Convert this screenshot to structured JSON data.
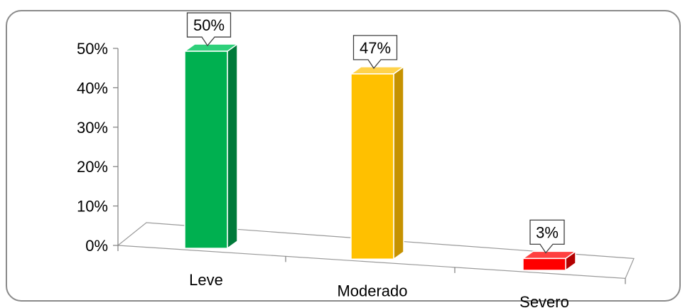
{
  "chart_data": {
    "type": "bar",
    "categories": [
      "Leve",
      "Moderado",
      "Severo"
    ],
    "values": [
      50,
      47,
      3
    ],
    "value_labels": [
      "50%",
      "47%",
      "3%"
    ],
    "colors": [
      "#00b050",
      "#ffc000",
      "#ff0000"
    ],
    "side_colors": [
      "#007a3a",
      "#c69200",
      "#b30000"
    ],
    "top_colors": [
      "#2ed07a",
      "#ffd24a",
      "#ff4040"
    ],
    "ylim": [
      0,
      50
    ],
    "yticks": [
      "0%",
      "10%",
      "20%",
      "30%",
      "40%",
      "50%"
    ],
    "title": "",
    "xlabel": "",
    "ylabel": "",
    "grid": false,
    "legend": "none"
  }
}
